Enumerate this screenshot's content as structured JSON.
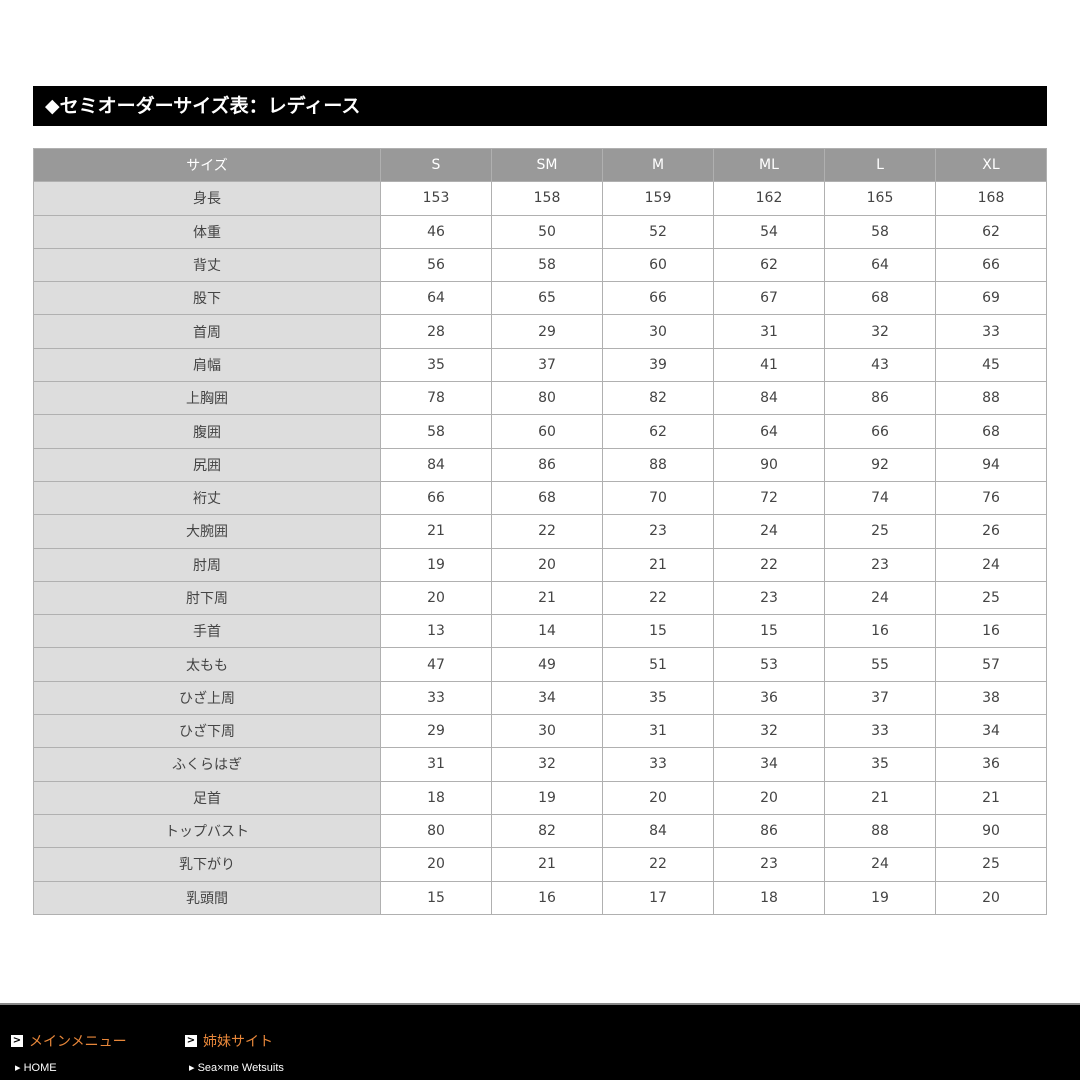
{
  "title": "◆セミオーダーサイズ表：レディース",
  "table": {
    "headers": [
      "サイズ",
      "S",
      "SM",
      "M",
      "ML",
      "L",
      "XL"
    ],
    "rows": [
      [
        "身長",
        "153",
        "158",
        "159",
        "162",
        "165",
        "168"
      ],
      [
        "体重",
        "46",
        "50",
        "52",
        "54",
        "58",
        "62"
      ],
      [
        "背丈",
        "56",
        "58",
        "60",
        "62",
        "64",
        "66"
      ],
      [
        "股下",
        "64",
        "65",
        "66",
        "67",
        "68",
        "69"
      ],
      [
        "首周",
        "28",
        "29",
        "30",
        "31",
        "32",
        "33"
      ],
      [
        "肩幅",
        "35",
        "37",
        "39",
        "41",
        "43",
        "45"
      ],
      [
        "上胸囲",
        "78",
        "80",
        "82",
        "84",
        "86",
        "88"
      ],
      [
        "腹囲",
        "58",
        "60",
        "62",
        "64",
        "66",
        "68"
      ],
      [
        "尻囲",
        "84",
        "86",
        "88",
        "90",
        "92",
        "94"
      ],
      [
        "裄丈",
        "66",
        "68",
        "70",
        "72",
        "74",
        "76"
      ],
      [
        "大腕囲",
        "21",
        "22",
        "23",
        "24",
        "25",
        "26"
      ],
      [
        "肘周",
        "19",
        "20",
        "21",
        "22",
        "23",
        "24"
      ],
      [
        "肘下周",
        "20",
        "21",
        "22",
        "23",
        "24",
        "25"
      ],
      [
        "手首",
        "13",
        "14",
        "15",
        "15",
        "16",
        "16"
      ],
      [
        "太もも",
        "47",
        "49",
        "51",
        "53",
        "55",
        "57"
      ],
      [
        "ひざ上周",
        "33",
        "34",
        "35",
        "36",
        "37",
        "38"
      ],
      [
        "ひざ下周",
        "29",
        "30",
        "31",
        "32",
        "33",
        "34"
      ],
      [
        "ふくらはぎ",
        "31",
        "32",
        "33",
        "34",
        "35",
        "36"
      ],
      [
        "足首",
        "18",
        "19",
        "20",
        "20",
        "21",
        "21"
      ],
      [
        "トップバスト",
        "80",
        "82",
        "84",
        "86",
        "88",
        "90"
      ],
      [
        "乳下がり",
        "20",
        "21",
        "22",
        "23",
        "24",
        "25"
      ],
      [
        "乳頭間",
        "15",
        "16",
        "17",
        "18",
        "19",
        "20"
      ]
    ]
  },
  "footer": {
    "main_menu": {
      "heading": "メインメニュー",
      "links": [
        "HOME"
      ]
    },
    "sister_sites": {
      "heading": "姉妹サイト",
      "links": [
        "Sea×me Wetsuits"
      ]
    }
  }
}
